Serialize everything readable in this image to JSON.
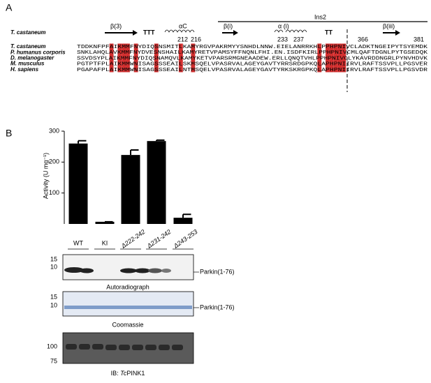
{
  "panel_a": {
    "label": "A",
    "header_species": "T. castaneum",
    "structure": {
      "b3": "β(3)",
      "ttt": "TTT",
      "ac": "αC",
      "ins2": "Ins2",
      "bi": "β(i)",
      "ai": "α (i)",
      "tt": "TT",
      "biii": "β(iii)"
    },
    "residues": [
      "212",
      "216",
      "233",
      "237",
      "366",
      "381"
    ],
    "rows": [
      {
        "species": "T. castaneum",
        "sequence": "TDDKNFPFAIKMMFNYDIQSNSMITLKAMYRGVPAKRMYYSNHDLNNW.EIELANRRKHLPPHPNIVCLADKTNGEIPYTSYEMDK"
      },
      {
        "species": "P. humanus corporis",
        "sequence": "SNKLAHQLAVKMMFNYDVESNSHAILKAMYRETVPAMSYFFNQNLFHI.EN.ISDFKIRLPPHPNIVCMLQAFTDGNLPYTGSEDQK"
      },
      {
        "species": "D. melanogaster",
        "sequence": "SSVDSYPLAIKMMFNYDIQSNAMQVLKAMYKETVPARSRMGNEAADEW.ERLLQNQTVHLPPHPNIVCLYKAVRDDNGRLPYNVHDVK"
      },
      {
        "species": "M. musculus",
        "sequence": "PGTPTFPLAIKMMWNISAGSSSEAILSKMSQELVPASRVALAGEYGAVTYRRSRDGPKQLAPHPNIIRVLRAFTSSVPLLPGSVER"
      },
      {
        "species": "H. sapiens",
        "sequence": "PGAPAFPLAIKMMWNISAGSSSEAILNTMSQELVPASRVALAGEYGAVTYRKSKRGPKQLAPHPNIIRVLRAFTSSVPLLPGSVDR"
      }
    ]
  },
  "chart_data": {
    "type": "bar",
    "label": "B",
    "y_label": "Activity (U mg⁻¹)",
    "categories": [
      "WT",
      "KI",
      "Δ222-242",
      "Δ231-242",
      "Δ243-253"
    ],
    "values": [
      260,
      7,
      223,
      268,
      20
    ],
    "errors": [
      9,
      0,
      16,
      3,
      11
    ],
    "color": "#000000",
    "ylim": [
      0,
      300
    ],
    "yticks": [
      100,
      200,
      300
    ]
  },
  "blots": {
    "autoradiograph": {
      "markers": [
        "15",
        "10"
      ],
      "band": "Parkin(1-76)",
      "caption": "Autoradiograph"
    },
    "coomassie": {
      "markers": [
        "15",
        "10"
      ],
      "band": "Parkin(1-76)",
      "caption": "Coomassie"
    },
    "ib": {
      "markers": [
        "100",
        "75"
      ],
      "caption_prefix": "IB: ",
      "caption_italic": "Tc",
      "caption_rest": "PINK1"
    }
  }
}
